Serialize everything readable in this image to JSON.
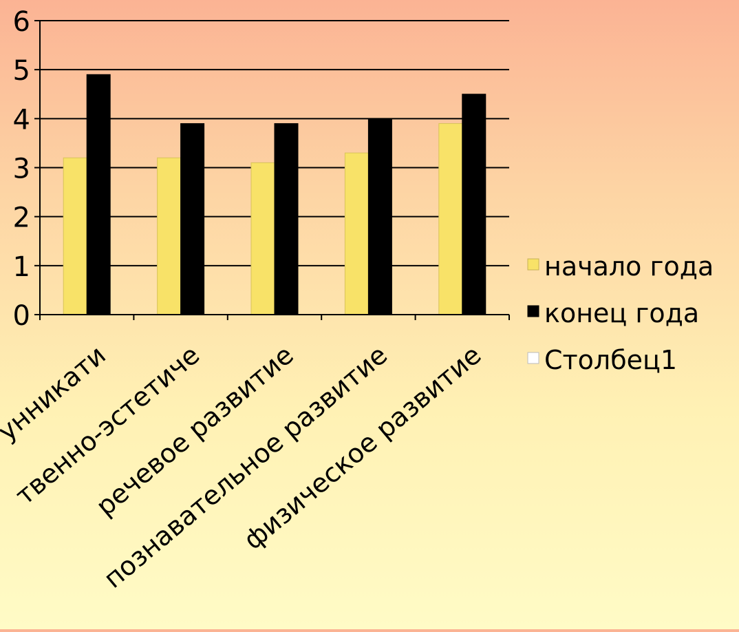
{
  "chart_data": {
    "type": "bar",
    "title": "",
    "xlabel": "",
    "ylabel": "",
    "categories": [
      "социально-коммуникативное развитие",
      "художественно-эстетическое развитие",
      "речевое развитие",
      "познавательное развитие",
      "физическое  развитие"
    ],
    "category_labels_visible": [
      "унникати",
      "твенно-эстетиче",
      "речевое развитие",
      "познавательное развитие",
      "физическое  развитие"
    ],
    "series": [
      {
        "name": "начало года",
        "values": [
          3.2,
          3.2,
          3.1,
          3.3,
          3.9
        ],
        "color": "#f8e268"
      },
      {
        "name": "конец года",
        "values": [
          4.9,
          3.9,
          3.9,
          4.0,
          4.5
        ],
        "color": "#000000"
      },
      {
        "name": "Столбец1",
        "values": [
          null,
          null,
          null,
          null,
          null
        ],
        "color": "#ffffff"
      }
    ],
    "ylim": [
      0,
      6
    ],
    "yticks": [
      "0",
      "1",
      "2",
      "3",
      "4",
      "5",
      "6"
    ],
    "grid": true,
    "legend_position": "right"
  }
}
